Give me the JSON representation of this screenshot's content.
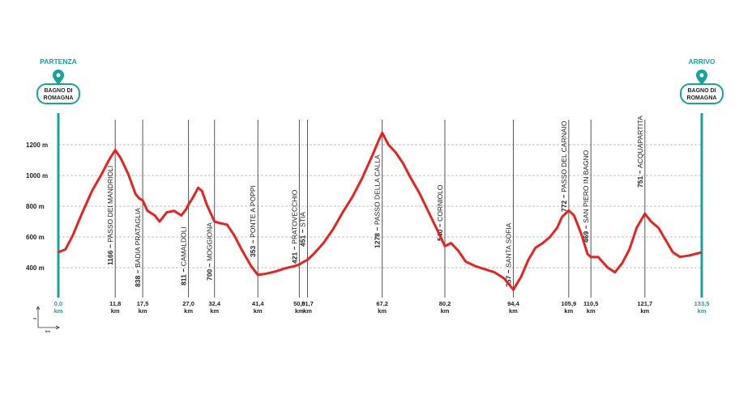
{
  "chart_data": {
    "type": "line",
    "start": {
      "label": "PARTENZA",
      "place": [
        "BAGNO DI",
        "ROMAGNA"
      ],
      "km": {
        "value": 0,
        "label": "0,0"
      }
    },
    "end": {
      "label": "ARRIVO",
      "place": [
        "BAGNO DI",
        "ROMAGNA"
      ],
      "km": {
        "value": 133.5,
        "label": "133,5"
      }
    },
    "x_unit": "km",
    "y_unit": "m",
    "color": "#e52320",
    "accent_color": "#17a39a",
    "grid": true,
    "xlim": [
      0,
      133.5
    ],
    "ylim": [
      200,
      1300
    ],
    "yticks": [
      {
        "value": 400,
        "label": "400 m"
      },
      {
        "value": 600,
        "label": "600 m"
      },
      {
        "value": 800,
        "label": "800 m"
      },
      {
        "value": 1000,
        "label": "1000 m"
      },
      {
        "value": 1200,
        "label": "1200 m"
      }
    ],
    "x": [
      0,
      1.5,
      3,
      5,
      7,
      9,
      10.5,
      11.8,
      13,
      14.5,
      16,
      16.8,
      17.5,
      18.5,
      20,
      21,
      22.5,
      24,
      25.5,
      26.5,
      27.0,
      28,
      29,
      29.8,
      30.8,
      32.4,
      33.5,
      35,
      36.5,
      38,
      40,
      41.4,
      43,
      45,
      47,
      49,
      50,
      51,
      51.7,
      53,
      55,
      57,
      59,
      61,
      63,
      65,
      66.5,
      67.2,
      68.5,
      70,
      71.5,
      73,
      75,
      77,
      79,
      80.2,
      81.5,
      83,
      84.5,
      86.5,
      88.5,
      90.5,
      92.5,
      94.4,
      96,
      97.5,
      99,
      100.5,
      102,
      103.5,
      104.5,
      105.9,
      107,
      108.5,
      109.8,
      110.5,
      112,
      114,
      115.5,
      117,
      118.5,
      120,
      121.7,
      123,
      124.5,
      126,
      127.5,
      129,
      131,
      133.5
    ],
    "values": [
      500,
      520,
      610,
      760,
      900,
      1010,
      1100,
      1166,
      1110,
      1010,
      880,
      850,
      838,
      770,
      740,
      700,
      760,
      770,
      740,
      780,
      811,
      860,
      920,
      900,
      810,
      700,
      690,
      680,
      610,
      520,
      410,
      353,
      360,
      375,
      395,
      410,
      421,
      440,
      451,
      490,
      560,
      650,
      760,
      860,
      980,
      1120,
      1230,
      1278,
      1200,
      1150,
      1080,
      990,
      880,
      750,
      620,
      540,
      560,
      510,
      440,
      410,
      390,
      370,
      330,
      257,
      340,
      450,
      530,
      560,
      600,
      660,
      730,
      772,
      740,
      620,
      490,
      469,
      470,
      400,
      370,
      430,
      520,
      660,
      751,
      700,
      660,
      580,
      500,
      470,
      480,
      500
    ],
    "waypoints": [
      {
        "elevation": 1166,
        "name": "PASSO DEI MANDRIOLI",
        "km": {
          "value": 11.8,
          "label": "11,8"
        }
      },
      {
        "elevation": 838,
        "name": "BADIA PRATAGLIA",
        "km": {
          "value": 17.5,
          "label": "17,5"
        }
      },
      {
        "elevation": 811,
        "name": "CAMALDOLI",
        "km": {
          "value": 27.0,
          "label": "27,0"
        }
      },
      {
        "elevation": 700,
        "name": "MOGGIONA",
        "km": {
          "value": 32.4,
          "label": "32,4"
        }
      },
      {
        "elevation": 353,
        "name": "PONTE A POPPI",
        "km": {
          "value": 41.4,
          "label": "41,4"
        }
      },
      {
        "elevation": 421,
        "name": "PRATOVECCHIO",
        "km": {
          "value": 50.0,
          "label": "50,0"
        }
      },
      {
        "elevation": 451,
        "name": "STIA",
        "km": {
          "value": 51.7,
          "label": "51,7"
        }
      },
      {
        "elevation": 1278,
        "name": "PASSO DELLA CALLA",
        "km": {
          "value": 67.2,
          "label": "67,2"
        }
      },
      {
        "elevation": 540,
        "name": "CORNIOLO",
        "km": {
          "value": 80.2,
          "label": "80,2"
        }
      },
      {
        "elevation": 257,
        "name": "SANTA SOFIA",
        "km": {
          "value": 94.4,
          "label": "94,4"
        }
      },
      {
        "elevation": 772,
        "name": "PASSO DEL CARNAIO",
        "km": {
          "value": 105.9,
          "label": "105,9"
        }
      },
      {
        "elevation": 469,
        "name": "SAN PIERO IN BAGNO",
        "km": {
          "value": 110.5,
          "label": "110,5"
        }
      },
      {
        "elevation": 751,
        "name": "ACQUAPARTITA",
        "km": {
          "value": 121.7,
          "label": "121,7"
        }
      }
    ]
  }
}
